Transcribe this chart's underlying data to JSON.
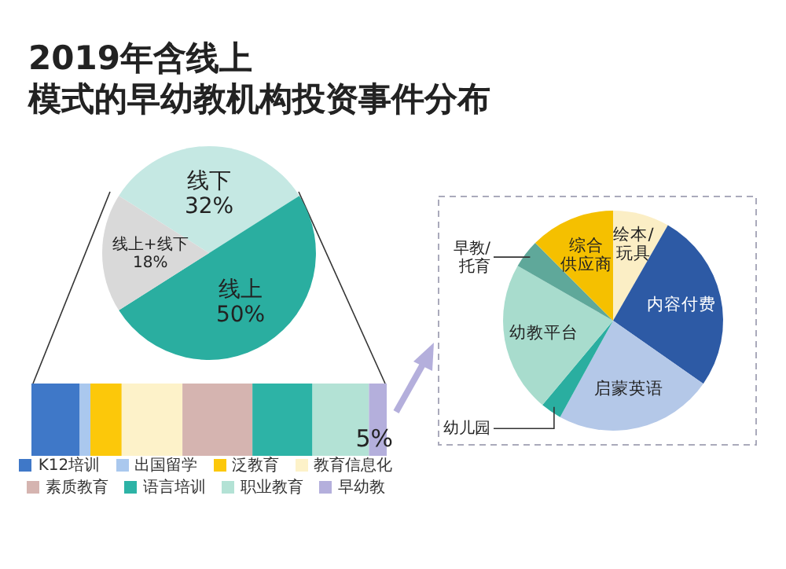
{
  "chart_data": [
    {
      "type": "pie",
      "title": "2019年含线上模式的早幼教机构投资事件分布",
      "categories": [
        "线下",
        "线上",
        "线上+线下"
      ],
      "values": [
        32,
        50,
        18
      ],
      "colors": [
        "#c5e8e3",
        "#2aaea0",
        "#d9d9d9"
      ],
      "value_labels": [
        "32%",
        "50%",
        "18%"
      ]
    },
    {
      "type": "bar",
      "stacked": true,
      "orientation": "horizontal",
      "categories": [
        null
      ],
      "xlim": [
        0,
        100
      ],
      "tick_labels": false,
      "legend": "bottom",
      "series": [
        {
          "name": "K12培训",
          "color": "#3f78c8",
          "values": [
            13.6
          ]
        },
        {
          "name": "出国留学",
          "color": "#aac8ee",
          "values": [
            3.0
          ]
        },
        {
          "name": "泛教育",
          "color": "#fcc80a",
          "values": [
            8.8
          ]
        },
        {
          "name": "教育信息化",
          "color": "#fdf2c9",
          "values": [
            17.1
          ]
        },
        {
          "name": "素质教育",
          "color": "#d5b4b0",
          "values": [
            19.7
          ]
        },
        {
          "name": "语言培训",
          "color": "#2db3a6",
          "values": [
            16.9
          ]
        },
        {
          "name": "职业教育",
          "color": "#b3e2d5",
          "values": [
            15.9
          ]
        },
        {
          "name": "早幼教",
          "color": "#b4afdc",
          "values": [
            5
          ],
          "value_labels": [
            "5%"
          ]
        }
      ]
    },
    {
      "type": "pie",
      "categories": [
        "绘本/玩具",
        "内容付费",
        "启蒙英语",
        "幼儿园",
        "幼教平台",
        "早教/托育",
        "综合供应商"
      ],
      "values": [
        8.3,
        26.4,
        23.3,
        3.1,
        22.2,
        4.2,
        12.5
      ],
      "colors": [
        "#fbeec5",
        "#2d5aa5",
        "#b4c8e8",
        "#2aaea0",
        "#a8dccd",
        "#5fa89a",
        "#f5c000"
      ]
    }
  ]
}
